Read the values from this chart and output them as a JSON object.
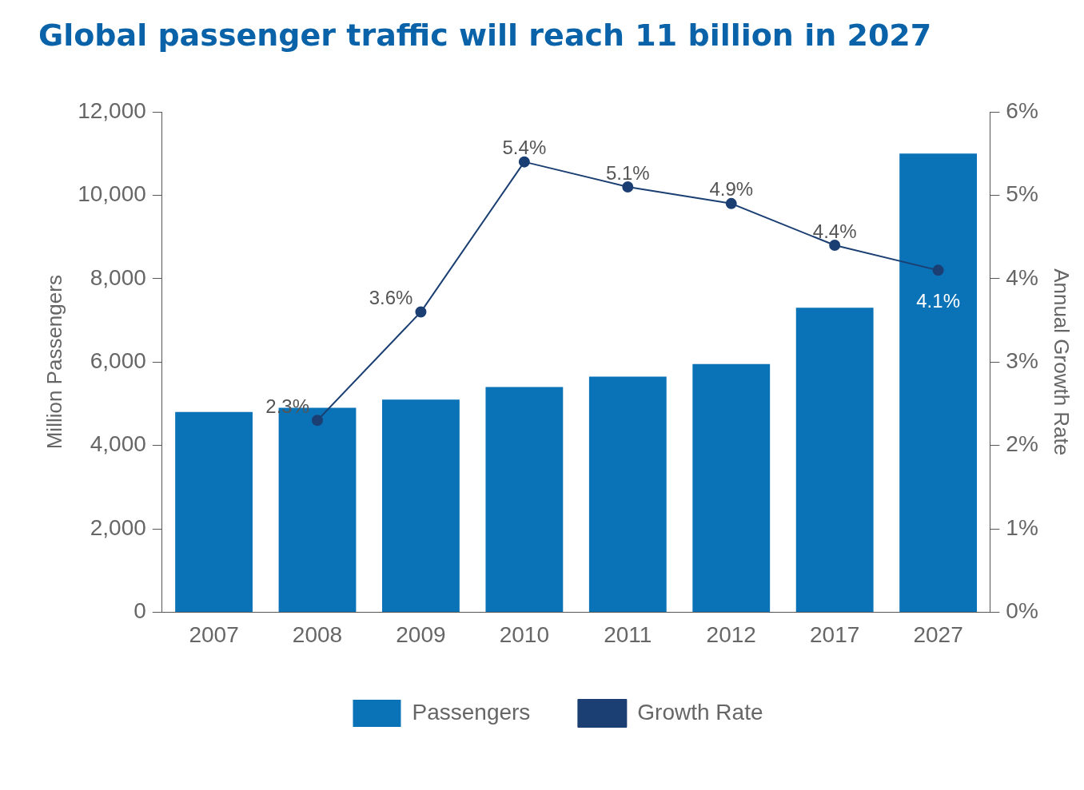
{
  "chart_data": {
    "type": "bar",
    "title": "Global passenger traffic will reach 11 billion in 2027",
    "ylabel": "Million Passengers",
    "y2label": "Annual Growth Rate",
    "categories": [
      "2007",
      "2008",
      "2009",
      "2010",
      "2011",
      "2012",
      "2017",
      "2027"
    ],
    "series": [
      {
        "name": "Passengers",
        "color": "#0a72b6",
        "values": [
          4800,
          4900,
          5100,
          5400,
          5650,
          5950,
          7300,
          11000
        ]
      },
      {
        "name": "Growth Rate",
        "type": "line",
        "axis": "y2",
        "color": "#1b3f73",
        "marker": "circle",
        "values": [
          null,
          2.3,
          3.6,
          5.4,
          5.1,
          4.9,
          4.4,
          4.1
        ],
        "value_labels": [
          null,
          "2.3%",
          "3.6%",
          "5.4%",
          "5.1%",
          "4.9%",
          "4.4%",
          "4.1%"
        ]
      }
    ],
    "ylim": [
      0,
      12000
    ],
    "yticks": [
      {
        "value": 0,
        "label": "0"
      },
      {
        "value": 2000,
        "label": "2,000"
      },
      {
        "value": 4000,
        "label": "4,000"
      },
      {
        "value": 6000,
        "label": "6,000"
      },
      {
        "value": 8000,
        "label": "8,000"
      },
      {
        "value": 10000,
        "label": "10,000"
      },
      {
        "value": 12000,
        "label": "12,000"
      }
    ],
    "y2lim": [
      0,
      6
    ],
    "y2ticks": [
      {
        "value": 0,
        "label": "0%"
      },
      {
        "value": 1,
        "label": "1%"
      },
      {
        "value": 2,
        "label": "2%"
      },
      {
        "value": 3,
        "label": "3%"
      },
      {
        "value": 4,
        "label": "4%"
      },
      {
        "value": 5,
        "label": "5%"
      },
      {
        "value": 6,
        "label": "6%"
      }
    ],
    "grid": false,
    "legend": "bottom"
  }
}
